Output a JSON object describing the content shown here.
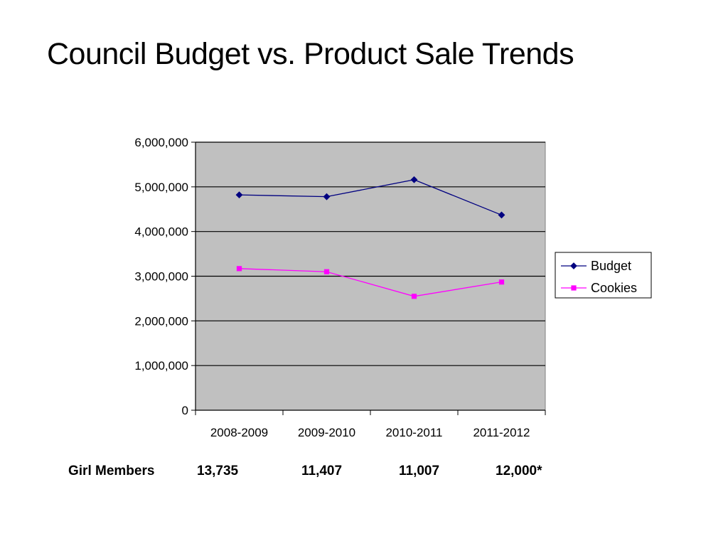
{
  "slide": {
    "title": "Council Budget vs. Product Sale Trends"
  },
  "chart_data": {
    "type": "line",
    "title": "",
    "xlabel": "",
    "ylabel": "",
    "categories": [
      "2008-2009",
      "2009-2010",
      "2010-2011",
      "2011-2012"
    ],
    "ylim": [
      0,
      6000000
    ],
    "yticks": [
      0,
      1000000,
      2000000,
      3000000,
      4000000,
      5000000,
      6000000
    ],
    "ytick_labels": [
      "0",
      "1,000,000",
      "2,000,000",
      "3,000,000",
      "4,000,000",
      "5,000,000",
      "6,000,000"
    ],
    "grid": true,
    "plot_background": "#c0c0c0",
    "legend_position": "right",
    "series": [
      {
        "name": "Budget",
        "values": [
          4820000,
          4780000,
          5160000,
          4370000
        ],
        "color": "#000080",
        "marker": "diamond"
      },
      {
        "name": "Cookies",
        "values": [
          3170000,
          3100000,
          2550000,
          2870000
        ],
        "color": "#ff00ff",
        "marker": "square"
      }
    ]
  },
  "members": {
    "label": "Girl Members",
    "values": [
      "13,735",
      "11,407",
      "11,007",
      "12,000*"
    ]
  }
}
